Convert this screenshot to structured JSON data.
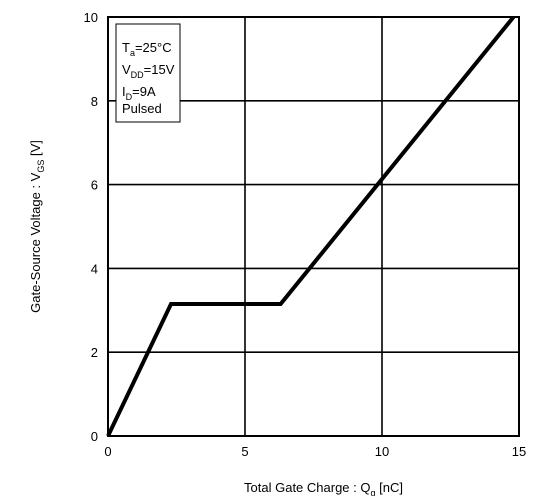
{
  "chart_data": {
    "type": "line",
    "title": "",
    "xlabel": {
      "main": "Total Gate Charge : Q",
      "sub": "g",
      "unit": " [nC]"
    },
    "ylabel": {
      "main": "Gate-Source Voltage : V",
      "sub": "GS",
      "unit": " [V]"
    },
    "xlim": [
      0,
      15
    ],
    "ylim": [
      0,
      10
    ],
    "xticks": [
      "0",
      "5",
      "10",
      "15"
    ],
    "yticks": [
      "0",
      "2",
      "4",
      "6",
      "8",
      "10"
    ],
    "grid": true,
    "series": [
      {
        "x": [
          0,
          2.3,
          6.3,
          14.8
        ],
        "y": [
          0,
          3.15,
          3.15,
          10
        ]
      }
    ],
    "conditions_box": {
      "placement": "top-left",
      "lines": [
        {
          "main": "T",
          "sub": "a",
          "rest": "=25°C"
        },
        {
          "main": "V",
          "sub": "DD",
          "rest": "=15V"
        },
        {
          "main": "I",
          "sub": "D",
          "rest": "=9A"
        },
        {
          "main": "Pulsed",
          "sub": "",
          "rest": ""
        }
      ]
    }
  }
}
